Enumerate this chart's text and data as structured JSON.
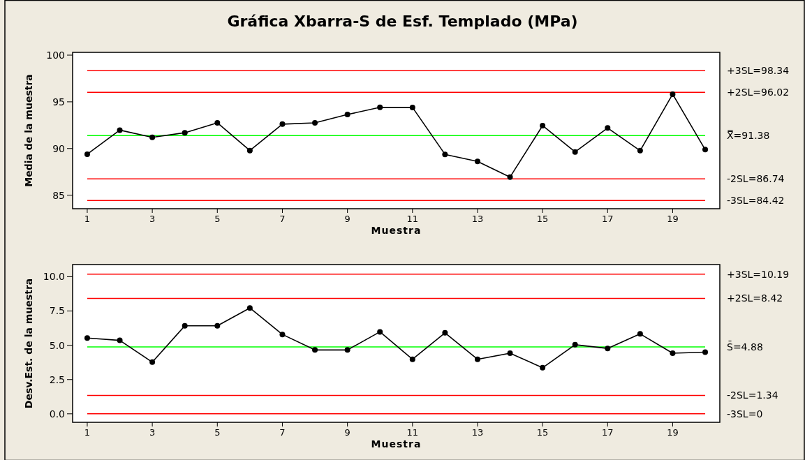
{
  "chart_data": [
    {
      "type": "line",
      "title": "Gráfica Xbarra-S de Esf. Templado (MPa)",
      "xlabel": "Muestra",
      "ylabel": "Media de la muestra",
      "x": [
        1,
        2,
        3,
        4,
        5,
        6,
        7,
        8,
        9,
        10,
        11,
        12,
        13,
        14,
        15,
        16,
        17,
        18,
        19,
        20
      ],
      "series": [
        {
          "color": "#000000",
          "values": [
            89.39,
            91.97,
            91.2,
            91.69,
            92.75,
            89.78,
            92.61,
            92.75,
            93.64,
            94.41,
            94.4,
            89.37,
            88.61,
            86.94,
            92.45,
            89.63,
            92.2,
            89.77,
            95.82,
            89.88
          ]
        }
      ],
      "xlim": [
        0.55,
        20.45
      ],
      "xticks": [
        1,
        3,
        5,
        7,
        9,
        11,
        13,
        15,
        17,
        19
      ],
      "ylim": [
        83.55,
        100.3
      ],
      "yticks": [
        85,
        90,
        95,
        100
      ],
      "grid": false,
      "marker": "circle",
      "line_style": "solid",
      "ref_lines": [
        {
          "axis": "y",
          "value": 98.34,
          "label": "+3SL=98.34",
          "color": "#ff0000"
        },
        {
          "axis": "y",
          "value": 96.02,
          "label": "+2SL=96.02",
          "color": "#ff0000"
        },
        {
          "axis": "y",
          "value": 91.38,
          "label": "X̿=91.38",
          "color": "#00ff00"
        },
        {
          "axis": "y",
          "value": 86.74,
          "label": "-2SL=86.74",
          "color": "#ff0000"
        },
        {
          "axis": "y",
          "value": 84.42,
          "label": "-3SL=84.42",
          "color": "#ff0000"
        }
      ]
    },
    {
      "type": "line",
      "xlabel": "Muestra",
      "ylabel": "Desv.Est. de la muestra",
      "x": [
        1,
        2,
        3,
        4,
        5,
        6,
        7,
        8,
        9,
        10,
        11,
        12,
        13,
        14,
        15,
        16,
        17,
        18,
        19,
        20
      ],
      "series": [
        {
          "color": "#000000",
          "values": [
            5.53,
            5.36,
            3.77,
            6.42,
            6.42,
            7.72,
            5.79,
            4.66,
            4.66,
            5.98,
            3.98,
            5.91,
            3.98,
            4.42,
            3.36,
            5.04,
            4.77,
            5.83,
            4.42,
            4.5
          ]
        }
      ],
      "xlim": [
        0.55,
        20.45
      ],
      "xticks": [
        1,
        3,
        5,
        7,
        9,
        11,
        13,
        15,
        17,
        19
      ],
      "ylim": [
        -0.62,
        10.89
      ],
      "yticks": [
        {
          "value": 0,
          "label": "0.0"
        },
        2.5,
        {
          "value": 5,
          "label": "5.0"
        },
        7.5,
        {
          "value": 10,
          "label": "10.0"
        }
      ],
      "grid": false,
      "marker": "circle",
      "line_style": "solid",
      "ref_lines": [
        {
          "axis": "y",
          "value": 10.19,
          "label": "+3SL=10.19",
          "color": "#ff0000"
        },
        {
          "axis": "y",
          "value": 8.42,
          "label": "+2SL=8.42",
          "color": "#ff0000"
        },
        {
          "axis": "y",
          "value": 4.88,
          "label": "S̄=4.88",
          "color": "#00ff00"
        },
        {
          "axis": "y",
          "value": 1.34,
          "label": "-2SL=1.34",
          "color": "#ff0000"
        },
        {
          "axis": "y",
          "value": 0,
          "label": "-3SL=0",
          "color": "#ff0000"
        }
      ]
    }
  ]
}
